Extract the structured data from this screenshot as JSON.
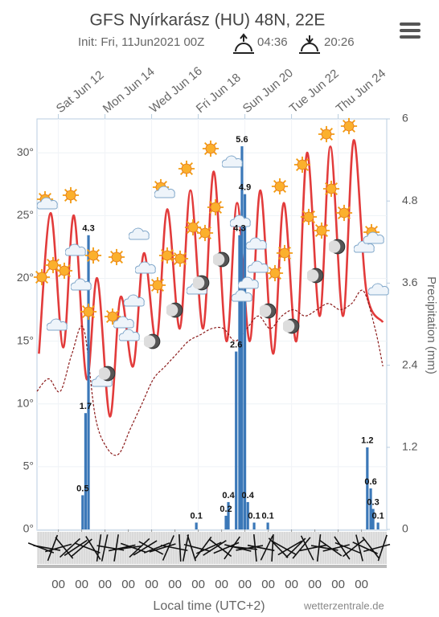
{
  "chart_data": {
    "type": "line",
    "title": "GFS Nyírkarász (HU) 48N, 22E",
    "subtitle": "Init: Fri, 11Jun2021 00Z",
    "sunrise": "04:36",
    "sunset": "20:26",
    "xlabel": "Local time (UTC+2)",
    "y2label": "Precipitation (mm)",
    "source": "wetterzentrale.de",
    "xlim": [
      0,
      360
    ],
    "xticks": [
      {
        "value": 22,
        "label": "00"
      },
      {
        "value": 46,
        "label": "00"
      },
      {
        "value": 70,
        "label": "00"
      },
      {
        "value": 94,
        "label": "00"
      },
      {
        "value": 118,
        "label": "00"
      },
      {
        "value": 142,
        "label": "00"
      },
      {
        "value": 166,
        "label": "00"
      },
      {
        "value": 190,
        "label": "00"
      },
      {
        "value": 214,
        "label": "00"
      },
      {
        "value": 238,
        "label": "00"
      },
      {
        "value": 262,
        "label": "00"
      },
      {
        "value": 286,
        "label": "00"
      },
      {
        "value": 310,
        "label": "00"
      },
      {
        "value": 334,
        "label": "00"
      }
    ],
    "top_xticks": [
      {
        "value": 22,
        "label": "Sat Jun 12"
      },
      {
        "value": 70,
        "label": "Mon Jun 14"
      },
      {
        "value": 118,
        "label": "Wed Jun 16"
      },
      {
        "value": 166,
        "label": "Fri Jun 18"
      },
      {
        "value": 214,
        "label": "Sun Jun 20"
      },
      {
        "value": 262,
        "label": "Tue Jun 22"
      },
      {
        "value": 310,
        "label": "Thu Jun 24"
      }
    ],
    "ylim": [
      0,
      32.7
    ],
    "yticks": [
      {
        "value": 0,
        "label": "0°"
      },
      {
        "value": 5,
        "label": "5°"
      },
      {
        "value": 10,
        "label": "10°"
      },
      {
        "value": 15,
        "label": "15°"
      },
      {
        "value": 20,
        "label": "20°"
      },
      {
        "value": 25,
        "label": "25°"
      },
      {
        "value": 30,
        "label": "30°"
      }
    ],
    "y2lim": [
      0,
      6
    ],
    "y2ticks": [
      0,
      1.2,
      2.4,
      3.6,
      4.8,
      6
    ],
    "grid": true,
    "series": [
      {
        "color": "#e23b3b",
        "style": "solid",
        "x": [
          2,
          14,
          27,
          38,
          51,
          62,
          75,
          86,
          99,
          110,
          123,
          134,
          147,
          158,
          171,
          182,
          195,
          206,
          219,
          230,
          243,
          254,
          267,
          278,
          291,
          302,
          315,
          326,
          339,
          356
        ],
        "values": [
          14,
          25.2,
          14.5,
          25,
          12,
          20,
          9,
          18.5,
          13,
          22,
          15,
          25.5,
          16,
          27,
          16,
          28.5,
          15,
          26,
          15,
          27,
          14,
          26,
          15,
          30,
          17,
          30.5,
          17,
          31,
          19,
          16.5
        ]
      },
      {
        "color": "#8b1a1a",
        "style": "dashed",
        "x": [
          0,
          12,
          24,
          36,
          48,
          60,
          72,
          84,
          96,
          108,
          120,
          132,
          144,
          156,
          168,
          180,
          192,
          204,
          216,
          228,
          240,
          252,
          264,
          276,
          288,
          300,
          312,
          324,
          336,
          348,
          356
        ],
        "values": [
          11,
          12,
          11,
          14,
          16,
          9,
          6.5,
          6,
          8,
          10,
          12,
          13,
          14,
          15,
          15.5,
          16,
          16,
          15,
          16,
          17,
          16,
          17,
          17.5,
          17,
          17.5,
          18,
          17.5,
          18,
          19,
          16,
          13
        ]
      },
      {
        "color": "#3b78b8",
        "style": "bar",
        "axis": "y2",
        "x": [
          47,
          50,
          53,
          164,
          194.5,
          197,
          205,
          208.5,
          211,
          214,
          217,
          223.5,
          237.6,
          340,
          343.5,
          346,
          351
        ],
        "values": [
          0.5,
          1.7,
          4.3,
          0.1,
          0.2,
          0.4,
          2.6,
          4.3,
          5.6,
          4.9,
          0.4,
          0.1,
          0.1,
          1.2,
          0.6,
          0.3,
          0.1
        ]
      }
    ]
  }
}
